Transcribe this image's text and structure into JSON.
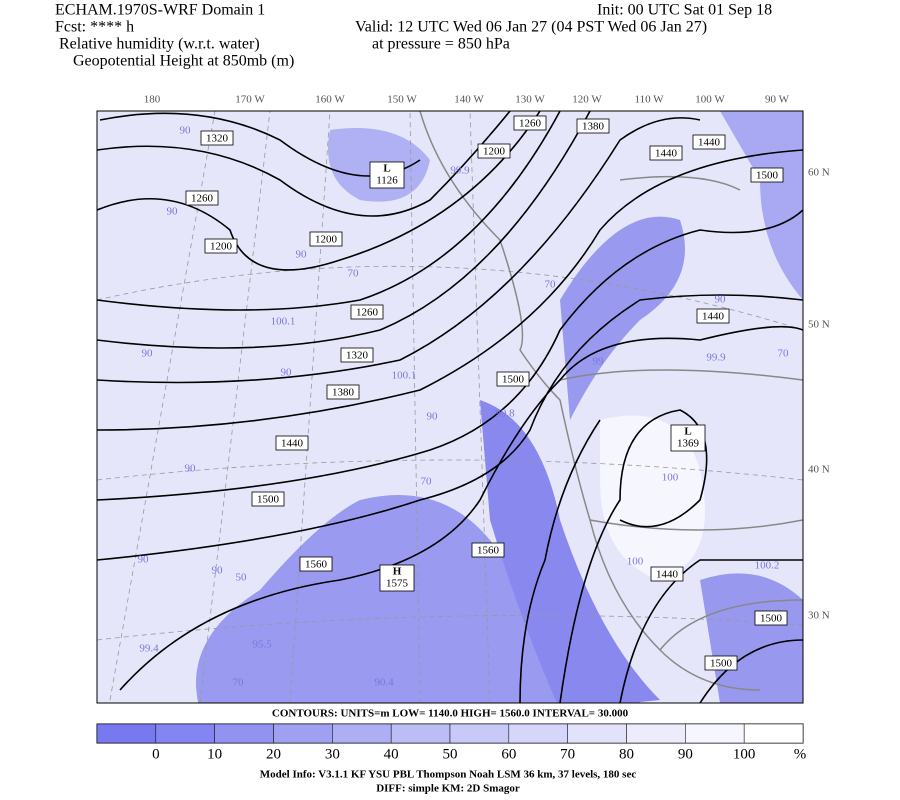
{
  "header": {
    "left": [
      "ECHAM.1970S-WRF Domain 1",
      "Fcst: **** h",
      "Relative humidity (w.r.t. water)",
      "Geopotential Height at 850mb (m)"
    ],
    "right": [
      "Init: 00 UTC Sat 01 Sep 18",
      "Valid: 12 UTC Wed 06 Jan 27 (04 PST Wed 06 Jan 27)",
      "at pressure =  850 hPa"
    ]
  },
  "map": {
    "longitudes": [
      "180",
      "170 W",
      "160 W",
      "150 W",
      "140 W",
      "130 W",
      "120 W",
      "110 W",
      "100 W",
      "90 W"
    ],
    "latitudes": [
      "60 N",
      "50 N",
      "40 N",
      "30 N"
    ],
    "contour_labels": [
      "1320",
      "1260",
      "1200",
      "1200",
      "1260",
      "1320",
      "1380",
      "1440",
      "1500",
      "1560",
      "1560",
      "1500",
      "1260",
      "1200",
      "1380",
      "1440",
      "1440",
      "1500",
      "1440",
      "1440",
      "1500",
      "1500"
    ],
    "centers": [
      {
        "letter": "L",
        "value": "1126"
      },
      {
        "letter": "H",
        "value": "1575"
      },
      {
        "letter": "L",
        "value": "1369"
      }
    ],
    "rh_labels": [
      "90",
      "90",
      "90",
      "90",
      "90",
      "90",
      "90",
      "90",
      "90",
      "70",
      "70",
      "70",
      "50",
      "70",
      "100.1",
      "99.4",
      "95.5",
      "90.4",
      "99.9",
      "100.1",
      "99.8",
      "99.9",
      "100",
      "100",
      "100.2",
      "99",
      "70",
      "90"
    ]
  },
  "colorbar": {
    "labels": [
      0,
      10,
      20,
      30,
      40,
      50,
      60,
      70,
      80,
      90,
      100,
      "%"
    ]
  },
  "footer": {
    "contours": "CONTOURS:  UNITS=m  LOW=   1140.0      HIGH=   1560.0      INTERVAL=    30.000",
    "model": "Model Info: V3.1.1    KF      YSU PBL   Thompson    Noah LSM   36 km,    37 levels,   180 sec",
    "diff": "DIFF: simple KM: 2D Smagor"
  }
}
